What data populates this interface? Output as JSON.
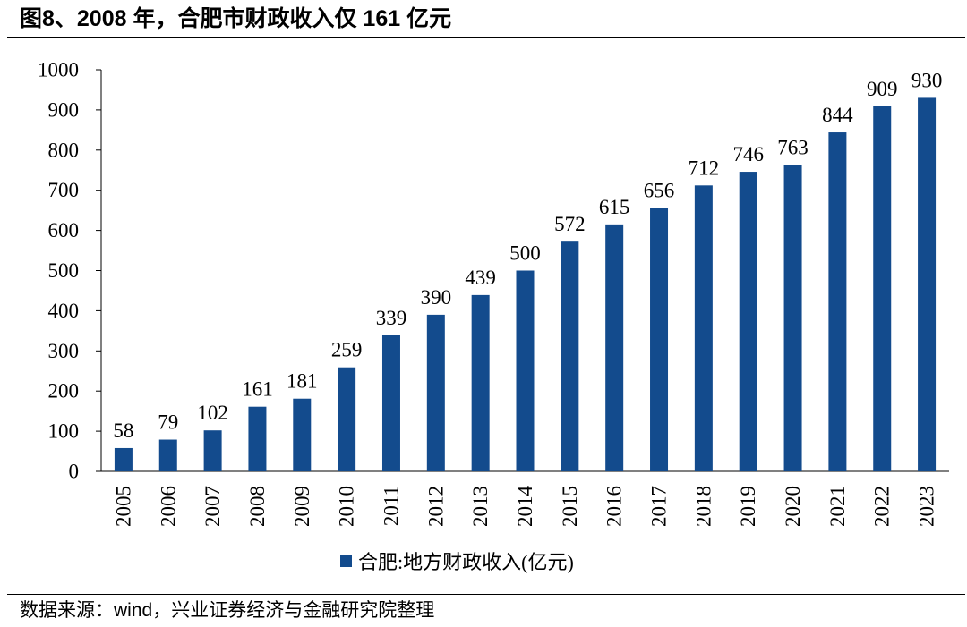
{
  "figure": {
    "title": "图8、2008 年，合肥市财政收入仅 161 亿元",
    "source": "数据来源：wind，兴业证券经济与金融研究院整理"
  },
  "colors": {
    "bar": "#134b8d",
    "axis": "#000000",
    "text": "#000000"
  },
  "chart_data": {
    "type": "bar",
    "title": "",
    "xlabel": "",
    "ylabel": "",
    "ylim": [
      0,
      1000
    ],
    "yticks": [
      0,
      100,
      200,
      300,
      400,
      500,
      600,
      700,
      800,
      900,
      1000
    ],
    "grid": false,
    "legend_position": "bottom",
    "categories": [
      "2005",
      "2006",
      "2007",
      "2008",
      "2009",
      "2010",
      "2011",
      "2012",
      "2013",
      "2014",
      "2015",
      "2016",
      "2017",
      "2018",
      "2019",
      "2020",
      "2021",
      "2022",
      "2023"
    ],
    "series": [
      {
        "name": "合肥:地方财政收入(亿元)",
        "values": [
          58,
          79,
          102,
          161,
          181,
          259,
          339,
          390,
          439,
          500,
          572,
          615,
          656,
          712,
          746,
          763,
          844,
          909,
          930
        ],
        "data_labels": true
      }
    ]
  }
}
